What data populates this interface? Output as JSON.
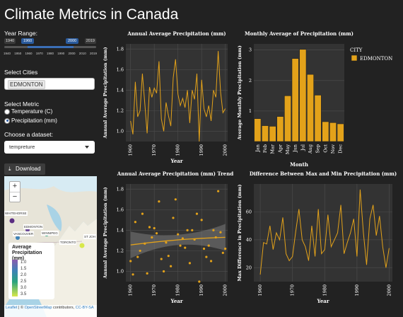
{
  "page": {
    "title": "Climate Metrics in Canada"
  },
  "sidebar": {
    "year_range": {
      "label": "Year Range:",
      "min": "1940",
      "max": "2019",
      "from": "1960",
      "to": "2000",
      "ticks": [
        "1940",
        "1950",
        "1960",
        "1970",
        "1980",
        "1990",
        "2000",
        "2010",
        "2019"
      ]
    },
    "cities": {
      "label": "Select Cities",
      "selected": "EDMONTON"
    },
    "metric": {
      "label": "Select Metric",
      "options": [
        "Temperature (C)",
        "Precipitation (mm)"
      ],
      "selected_index": 1
    },
    "dataset": {
      "label": "Choose a dataset:",
      "selected": "tempreture"
    },
    "download": {
      "label": "Download"
    }
  },
  "map": {
    "zoom_in": "+",
    "zoom_out": "−",
    "cities": [
      "WHITEHORSE",
      "EDMONTON",
      "VANCOUVER",
      "WINNIPEG",
      "TORONTO",
      "ST JOH"
    ],
    "legend": {
      "title": "Average Precipitation (mm)",
      "ticks": [
        "1.0",
        "1.5",
        "2.0",
        "2.5",
        "3.0",
        "3.5"
      ]
    },
    "attribution": {
      "leaflet": "Leaflet",
      "mid": " | © ",
      "osm": "OpenStreetMap",
      "tail": " contributors, ",
      "license": "CC-BY-SA"
    },
    "colors": {
      "purple": "#8a5cae",
      "blue": "#3e82b7",
      "teal": "#2aa37e",
      "yellow": "#d8e84a"
    }
  },
  "chart_data": [
    {
      "type": "line",
      "title": "Annual Average Precipitation (mm)",
      "xlabel": "Year",
      "ylabel": "Annual Average Precipitation (mm)",
      "xlim": [
        1958,
        2001
      ],
      "ylim": [
        0.9,
        1.85
      ],
      "xticks": [
        1960,
        1970,
        1980,
        1990,
        2000
      ],
      "yticks": [
        1.0,
        1.2,
        1.4,
        1.6,
        1.8
      ],
      "color": "#e3a21a",
      "x": [
        1960,
        1961,
        1962,
        1963,
        1964,
        1965,
        1966,
        1967,
        1968,
        1969,
        1970,
        1971,
        1972,
        1973,
        1974,
        1975,
        1976,
        1977,
        1978,
        1979,
        1980,
        1981,
        1982,
        1983,
        1984,
        1985,
        1986,
        1987,
        1988,
        1989,
        1990,
        1991,
        1992,
        1993,
        1994,
        1995,
        1996,
        1997,
        1998,
        1999,
        2000
      ],
      "y": [
        1.1,
        0.97,
        1.48,
        1.14,
        1.2,
        1.56,
        1.27,
        0.98,
        1.43,
        1.33,
        1.42,
        1.37,
        1.68,
        1.12,
        1.0,
        1.28,
        1.15,
        1.05,
        1.52,
        1.7,
        1.36,
        1.25,
        1.32,
        1.23,
        1.4,
        1.08,
        1.4,
        1.31,
        1.56,
        0.9,
        1.5,
        1.22,
        1.14,
        1.25,
        1.1,
        1.4,
        1.33,
        1.78,
        1.38,
        1.18,
        1.22
      ]
    },
    {
      "type": "bar",
      "title": "Monthly Average of Precipitation (mm)",
      "xlabel": "Month",
      "ylabel": "Average Monthly Precipitation (mm)",
      "legend_title": "CITY",
      "legend_position": "right",
      "categories": [
        "Jan",
        "Feb",
        "Mar",
        "Apr",
        "May",
        "Jun",
        "Jul",
        "Aug",
        "Sep",
        "Oct",
        "Nov",
        "Dec"
      ],
      "series": [
        {
          "name": "EDMONTON",
          "values": [
            0.75,
            0.52,
            0.5,
            0.82,
            1.5,
            2.72,
            3.02,
            2.2,
            1.52,
            0.65,
            0.62,
            0.58
          ]
        }
      ],
      "ylim": [
        0,
        3.2
      ],
      "yticks": [
        1,
        2,
        3
      ],
      "color": "#e3a21a"
    },
    {
      "type": "scatter",
      "title": "Annual Average Precipitation (mm) Trends",
      "xlabel": "Year",
      "ylabel": "Annual Average Precipitation (mm)",
      "xlim": [
        1958,
        2001
      ],
      "ylim": [
        0.9,
        1.85
      ],
      "xticks": [
        1960,
        1970,
        1980,
        1990,
        2000
      ],
      "yticks": [
        1.0,
        1.2,
        1.4,
        1.6,
        1.8
      ],
      "color": "#e3a21a",
      "x": [
        1960,
        1961,
        1962,
        1963,
        1964,
        1965,
        1966,
        1967,
        1968,
        1969,
        1970,
        1971,
        1972,
        1973,
        1974,
        1975,
        1976,
        1977,
        1978,
        1979,
        1980,
        1981,
        1982,
        1983,
        1984,
        1985,
        1986,
        1987,
        1988,
        1989,
        1990,
        1991,
        1992,
        1993,
        1994,
        1995,
        1996,
        1997,
        1998,
        1999,
        2000
      ],
      "y": [
        1.1,
        0.97,
        1.48,
        1.14,
        1.2,
        1.56,
        1.27,
        0.98,
        1.43,
        1.33,
        1.42,
        1.37,
        1.68,
        1.12,
        1.0,
        1.28,
        1.15,
        1.05,
        1.52,
        1.7,
        1.36,
        1.25,
        1.32,
        1.23,
        1.4,
        1.08,
        1.4,
        1.31,
        1.56,
        0.9,
        1.5,
        1.22,
        1.14,
        1.25,
        1.1,
        1.4,
        1.33,
        1.78,
        1.38,
        1.18,
        1.22
      ]
    },
    {
      "type": "line",
      "title": "Difference Between Max and Min Precipitation (mm)",
      "xlabel": "Year",
      "ylabel": "Max Difference in Precipitation (mm)",
      "xlim": [
        1958,
        2001
      ],
      "ylim": [
        10,
        80
      ],
      "xticks": [
        1960,
        1970,
        1980,
        1990,
        2000
      ],
      "yticks": [
        20,
        40,
        60
      ],
      "color": "#e3a21a",
      "x": [
        1960,
        1961,
        1962,
        1963,
        1964,
        1965,
        1966,
        1967,
        1968,
        1969,
        1970,
        1971,
        1972,
        1973,
        1974,
        1975,
        1976,
        1977,
        1978,
        1979,
        1980,
        1981,
        1982,
        1983,
        1984,
        1985,
        1986,
        1987,
        1988,
        1989,
        1990,
        1991,
        1992,
        1993,
        1994,
        1995,
        1996,
        1997,
        1998,
        1999,
        2000
      ],
      "y": [
        15,
        38,
        37,
        50,
        33,
        45,
        40,
        56,
        30,
        25,
        28,
        46,
        62,
        40,
        35,
        25,
        50,
        28,
        62,
        30,
        33,
        58,
        35,
        40,
        45,
        65,
        30,
        38,
        45,
        55,
        28,
        76,
        45,
        22,
        55,
        65,
        43,
        57,
        35,
        20,
        34
      ]
    }
  ]
}
